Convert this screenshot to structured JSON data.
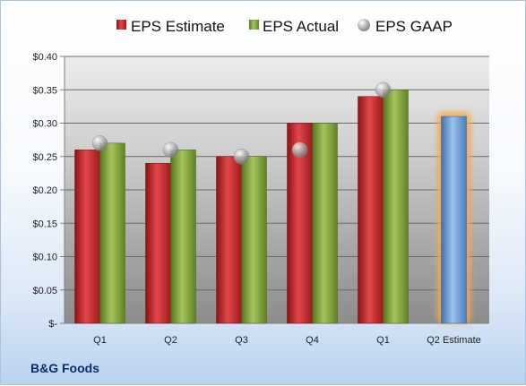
{
  "company": "B&G Foods",
  "colors": {
    "estimate": "#c8282c",
    "actual": "#7ea83a",
    "gaap": "#b7b7b7",
    "projection": "#6b9fd8",
    "glow": "#f6a94a"
  },
  "chart_data": {
    "type": "bar",
    "categories": [
      "Q1",
      "Q2",
      "Q3",
      "Q4",
      "Q1",
      "Q2 Estimate"
    ],
    "series": [
      {
        "name": "EPS Estimate",
        "kind": "bar",
        "values": [
          0.26,
          0.24,
          0.25,
          0.3,
          0.34,
          0.31
        ]
      },
      {
        "name": "EPS Actual",
        "kind": "bar",
        "values": [
          0.27,
          0.26,
          0.25,
          0.3,
          0.35,
          null
        ]
      },
      {
        "name": "EPS GAAP",
        "kind": "marker",
        "values": [
          0.27,
          0.26,
          0.25,
          0.26,
          0.35,
          null
        ]
      }
    ],
    "y_ticks": [
      "$-",
      "$0.05",
      "$0.10",
      "$0.15",
      "$0.20",
      "$0.25",
      "$0.30",
      "$0.35",
      "$0.40"
    ],
    "ylim": [
      0,
      0.4
    ],
    "grid": true,
    "legend_position": "top"
  }
}
